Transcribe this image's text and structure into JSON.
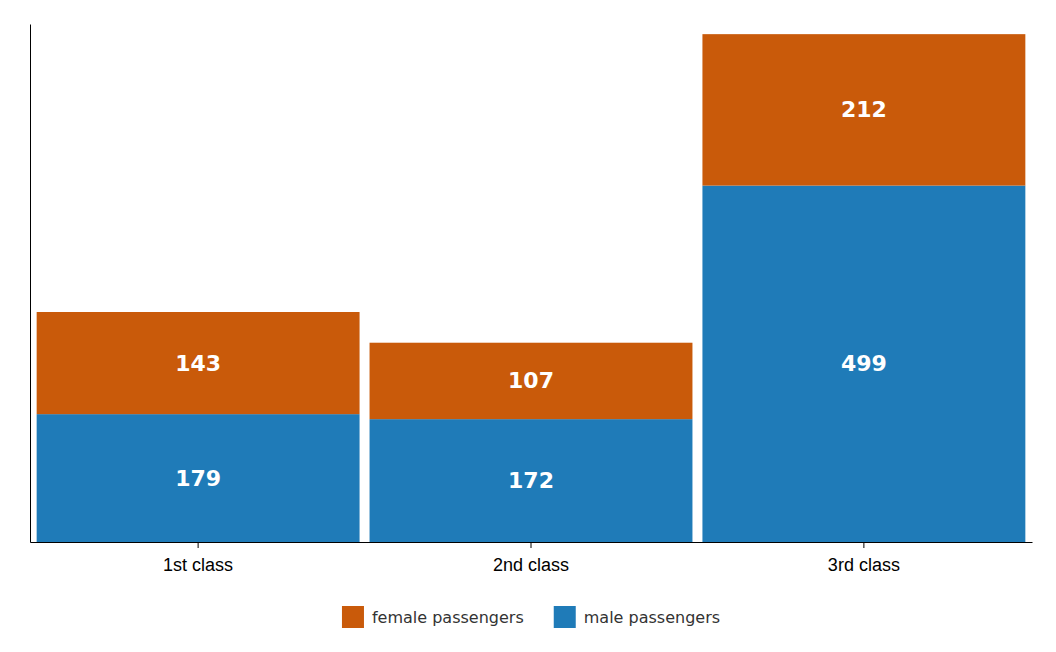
{
  "chart_data": {
    "type": "bar",
    "stacked": true,
    "categories": [
      "1st class",
      "2nd class",
      "3rd class"
    ],
    "series": [
      {
        "name": "male passengers",
        "color": "#1F7BB8",
        "values": [
          179,
          172,
          499
        ]
      },
      {
        "name": "female passengers",
        "color": "#C95A0A",
        "values": [
          143,
          107,
          212
        ]
      }
    ],
    "ylim": [
      0,
      725.22
    ],
    "tick_labels": "x",
    "data_labels": true,
    "grid": false,
    "legend": "bottom"
  }
}
